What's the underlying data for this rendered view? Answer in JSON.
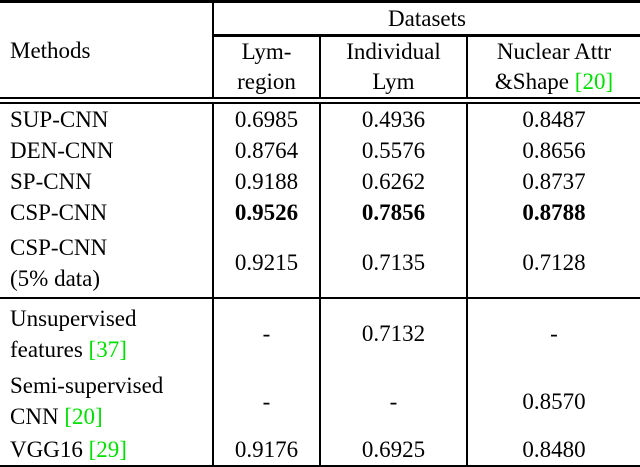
{
  "table": {
    "title_row": {
      "methods_label": "Methods",
      "datasets_label": "Datasets"
    },
    "columns": [
      {
        "line1": "Lym-",
        "line2": "region",
        "citation": ""
      },
      {
        "line1": "Individual",
        "line2": "Lym",
        "citation": ""
      },
      {
        "line1": "Nuclear Attr",
        "line2": "&Shape",
        "citation": "[20]"
      }
    ],
    "rows": [
      {
        "method_line1": "SUP-CNN",
        "method_line2": "",
        "citation": "",
        "values": [
          "0.6985",
          "0.4936",
          "0.8487"
        ],
        "bold": false
      },
      {
        "method_line1": "DEN-CNN",
        "method_line2": "",
        "citation": "",
        "values": [
          "0.8764",
          "0.5576",
          "0.8656"
        ],
        "bold": false
      },
      {
        "method_line1": "SP-CNN",
        "method_line2": "",
        "citation": "",
        "values": [
          "0.9188",
          "0.6262",
          "0.8737"
        ],
        "bold": false
      },
      {
        "method_line1": "CSP-CNN",
        "method_line2": "",
        "citation": "",
        "values": [
          "0.9526",
          "0.7856",
          "0.8788"
        ],
        "bold": true
      },
      {
        "method_line1": "CSP-CNN",
        "method_line2": "(5% data)",
        "citation": "",
        "values": [
          "0.9215",
          "0.7135",
          "0.7128"
        ],
        "bold": false
      },
      {
        "method_line1": "Unsupervised",
        "method_line2": "features",
        "citation": "[37]",
        "values": [
          "-",
          "0.7132",
          "-"
        ],
        "bold": false
      },
      {
        "method_line1": "Semi-supervised",
        "method_line2": "CNN",
        "citation": "[20]",
        "values": [
          "-",
          "-",
          "0.8570"
        ],
        "bold": false
      },
      {
        "method_line1": "VGG16",
        "method_line2": "",
        "citation": "[29]",
        "values": [
          "0.9176",
          "0.6925",
          "0.8480"
        ],
        "bold": false
      }
    ],
    "colors": {
      "citation_green": "#00e000",
      "text": "#000000",
      "background": "#ffffff"
    }
  }
}
